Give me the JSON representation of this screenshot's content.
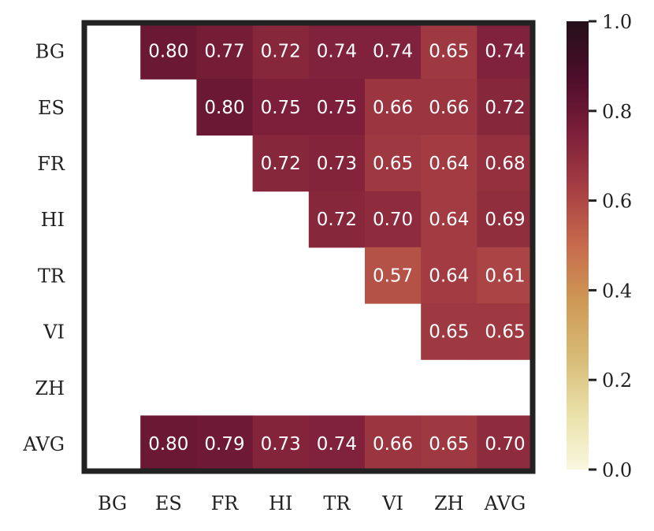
{
  "chart_data": {
    "type": "heatmap",
    "title": "",
    "xlabel": "",
    "ylabel": "",
    "row_labels": [
      "BG",
      "ES",
      "FR",
      "HI",
      "TR",
      "VI",
      "ZH",
      "AVG"
    ],
    "col_labels": [
      "BG",
      "ES",
      "FR",
      "HI",
      "TR",
      "VI",
      "ZH",
      "AVG"
    ],
    "values": [
      [
        null,
        0.8,
        0.77,
        0.72,
        0.74,
        0.74,
        0.65,
        0.74
      ],
      [
        null,
        null,
        0.8,
        0.75,
        0.75,
        0.66,
        0.66,
        0.72
      ],
      [
        null,
        null,
        null,
        0.72,
        0.73,
        0.65,
        0.64,
        0.68
      ],
      [
        null,
        null,
        null,
        null,
        0.72,
        0.7,
        0.64,
        0.69
      ],
      [
        null,
        null,
        null,
        null,
        null,
        0.57,
        0.64,
        0.61
      ],
      [
        null,
        null,
        null,
        null,
        null,
        null,
        0.65,
        0.65
      ],
      [
        null,
        null,
        null,
        null,
        null,
        null,
        null,
        null
      ],
      [
        null,
        0.8,
        0.79,
        0.73,
        0.74,
        0.66,
        0.65,
        0.7
      ]
    ],
    "value_format": "0.00",
    "colorbar": {
      "range": [
        0.0,
        1.0
      ],
      "ticks": [
        "0.0",
        "0.2",
        "0.4",
        "0.6",
        "0.8",
        "1.0"
      ],
      "colormap": [
        "#f9f7df",
        "#eae1a8",
        "#d7bb76",
        "#cf9955",
        "#c76b4c",
        "#a73f43",
        "#7d1f3a",
        "#4d0d2a",
        "#241018"
      ]
    },
    "colors": {
      "frame": "#222222"
    }
  }
}
